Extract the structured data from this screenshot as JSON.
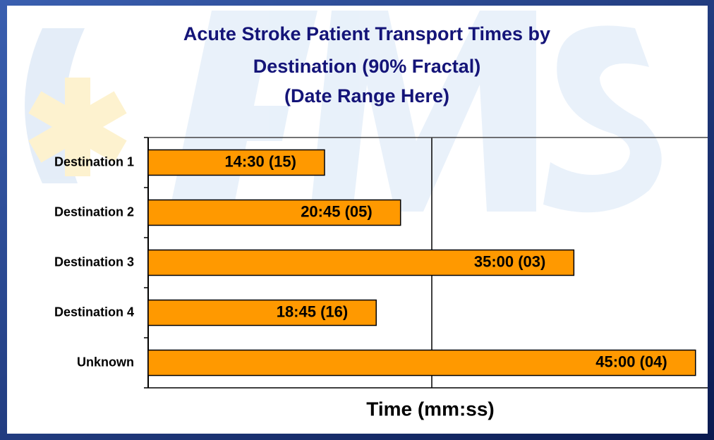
{
  "chart_data": {
    "type": "bar",
    "orientation": "horizontal",
    "title": [
      "Acute Stroke Patient Transport Times by",
      "Destination (90% Fractal)",
      "(Date Range Here)"
    ],
    "categories": [
      "Destination 1",
      "Destination 2",
      "Destination 3",
      "Destination 4",
      "Unknown"
    ],
    "values": [
      14.5,
      20.75,
      35,
      18.75,
      45
    ],
    "value_labels": [
      "14:30 (15)",
      "20:45 (05)",
      "35:00 (03)",
      "18:45 (16)",
      "45:00 (04)"
    ],
    "color": "#ff9900",
    "xlabel": "Time (mm:ss)",
    "xlim": [
      0,
      46
    ]
  }
}
